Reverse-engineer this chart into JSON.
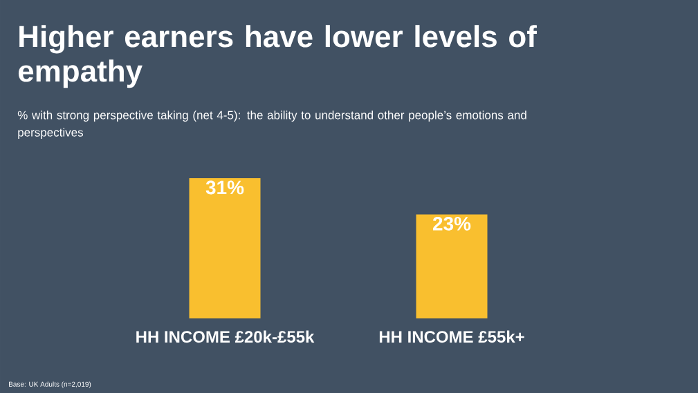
{
  "chart_data": {
    "type": "bar",
    "title": "Higher earners have lower levels of empathy",
    "subtitle": "% with strong perspective taking (net 4-5): the ability to understand other people’s emotions and perspectives",
    "categories": [
      "HH INCOME £20k-£55k",
      "HH INCOME £55k+"
    ],
    "values": [
      31,
      23
    ],
    "value_labels": [
      "31%",
      "23%"
    ],
    "color": "#f9bf2f",
    "annotations": [
      "Base: UK Adults (n=2,019)"
    ]
  }
}
